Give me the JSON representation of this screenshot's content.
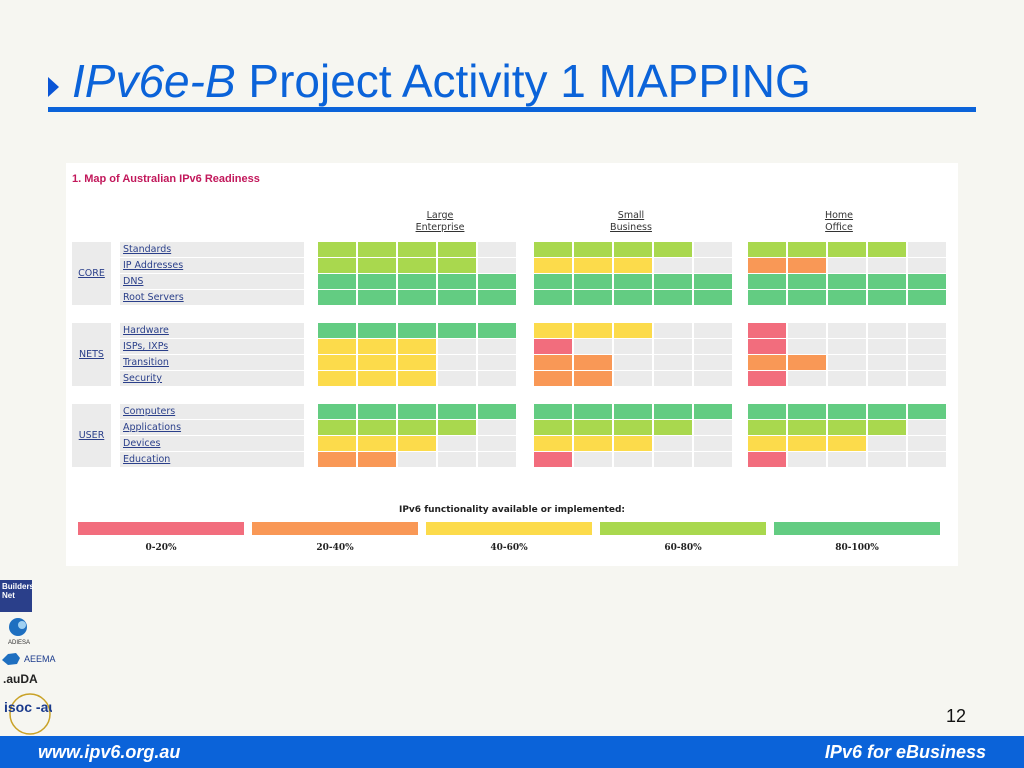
{
  "slide": {
    "title_italic": "IPv6e-B",
    "title_rest": " Project Activity 1 MAPPING",
    "page_number": "12",
    "footer_left": "www.ipv6.org.au",
    "footer_right": "IPv6 for eBusiness",
    "logos": {
      "builders_net": "Builders Net",
      "adiesa": "ADIESA",
      "aeema": "AEEMA",
      "auda": ".auDA",
      "isoc": "isoc -au"
    }
  },
  "map": {
    "title": "1. Map of Australian IPv6 Readiness",
    "columns": [
      {
        "line1": "Large",
        "line2": "Enterprise"
      },
      {
        "line1": "Small",
        "line2": "Business"
      },
      {
        "line1": "Home",
        "line2": "Office"
      }
    ],
    "colors": {
      "empty": "#ebebeb",
      "0-20%": "#f26d7d",
      "20-40%": "#f99856",
      "40-60%": "#fcdb4b",
      "60-80%": "#a9d84e",
      "80-100%": "#63cc82"
    },
    "groups": [
      {
        "label": "CORE",
        "rows": [
          {
            "label": "Standards",
            "levels": [
              4,
              4,
              4
            ]
          },
          {
            "label": "IP Addresses",
            "levels": [
              4,
              3,
              2
            ]
          },
          {
            "label": "DNS",
            "levels": [
              5,
              5,
              5
            ]
          },
          {
            "label": "Root Servers",
            "levels": [
              5,
              5,
              5
            ]
          }
        ]
      },
      {
        "label": "NETS",
        "rows": [
          {
            "label": "Hardware",
            "levels": [
              5,
              3,
              1
            ]
          },
          {
            "label": "ISPs, IXPs",
            "levels": [
              3,
              1,
              1
            ]
          },
          {
            "label": "Transition",
            "levels": [
              3,
              2,
              2
            ]
          },
          {
            "label": "Security",
            "levels": [
              3,
              2,
              1
            ]
          }
        ]
      },
      {
        "label": "USER",
        "rows": [
          {
            "label": "Computers",
            "levels": [
              5,
              5,
              5
            ]
          },
          {
            "label": "Applications",
            "levels": [
              4,
              4,
              4
            ]
          },
          {
            "label": "Devices",
            "levels": [
              3,
              3,
              3
            ]
          },
          {
            "label": "Education",
            "levels": [
              2,
              1,
              1
            ]
          }
        ]
      }
    ],
    "legend": {
      "title": "IPv6 functionality available or implemented:",
      "items": [
        {
          "label": "0-20%",
          "color": "#f26d7d"
        },
        {
          "label": "20-40%",
          "color": "#f99856"
        },
        {
          "label": "40-60%",
          "color": "#fcdb4b"
        },
        {
          "label": "60-80%",
          "color": "#a9d84e"
        },
        {
          "label": "80-100%",
          "color": "#63cc82"
        }
      ]
    }
  }
}
